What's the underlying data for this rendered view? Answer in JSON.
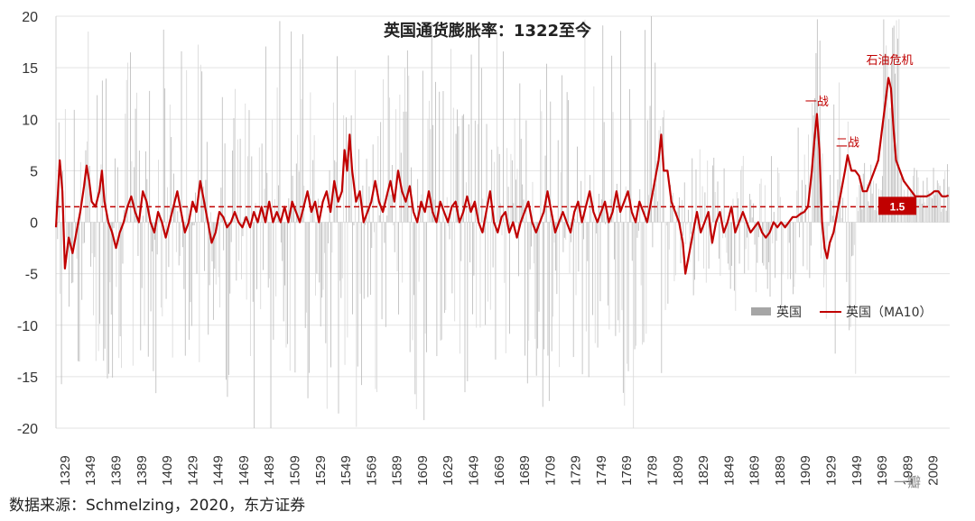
{
  "chart_data": {
    "type": "bar+line",
    "title": "英国通货膨胀率：1322至今",
    "ylim": [
      -20,
      20
    ],
    "yticks": [
      20,
      15,
      10,
      5,
      0,
      -5,
      -10,
      -15,
      -20
    ],
    "xlim": [
      1322,
      2022
    ],
    "xticks": [
      1329,
      1349,
      1369,
      1389,
      1409,
      1429,
      1449,
      1469,
      1489,
      1509,
      1529,
      1549,
      1569,
      1589,
      1609,
      1629,
      1649,
      1669,
      1689,
      1709,
      1729,
      1749,
      1769,
      1789,
      1809,
      1829,
      1849,
      1869,
      1889,
      1909,
      1929,
      1949,
      1969,
      1989,
      2009
    ],
    "grid": "horizontal",
    "legend_position": "bottom-right",
    "series": [
      {
        "name": "英国",
        "kind": "bar",
        "color": "#c0c0c0",
        "values_note": "annual inflation, high volatility pre-1800 (roughly ±15 to ±20), small post-1950"
      },
      {
        "name": "英国（MA10）",
        "kind": "line",
        "color": "#c00000",
        "points": [
          [
            1322,
            -0.5
          ],
          [
            1325,
            6
          ],
          [
            1327,
            3
          ],
          [
            1329,
            -4.5
          ],
          [
            1332,
            -1.5
          ],
          [
            1335,
            -3
          ],
          [
            1338,
            -1
          ],
          [
            1341,
            1
          ],
          [
            1344,
            3.5
          ],
          [
            1346,
            5.5
          ],
          [
            1348,
            4
          ],
          [
            1350,
            2
          ],
          [
            1353,
            1.5
          ],
          [
            1356,
            3
          ],
          [
            1358,
            5
          ],
          [
            1360,
            2
          ],
          [
            1363,
            0
          ],
          [
            1366,
            -1
          ],
          [
            1369,
            -2.5
          ],
          [
            1372,
            -1
          ],
          [
            1375,
            0
          ],
          [
            1378,
            1.5
          ],
          [
            1381,
            2.5
          ],
          [
            1384,
            1
          ],
          [
            1387,
            0
          ],
          [
            1390,
            3
          ],
          [
            1393,
            2
          ],
          [
            1396,
            0
          ],
          [
            1399,
            -1
          ],
          [
            1402,
            1
          ],
          [
            1405,
            0
          ],
          [
            1408,
            -1.5
          ],
          [
            1411,
            0
          ],
          [
            1414,
            1.5
          ],
          [
            1417,
            3
          ],
          [
            1420,
            1
          ],
          [
            1423,
            -1
          ],
          [
            1426,
            0
          ],
          [
            1429,
            2
          ],
          [
            1432,
            1
          ],
          [
            1435,
            4
          ],
          [
            1438,
            2
          ],
          [
            1441,
            0
          ],
          [
            1444,
            -2
          ],
          [
            1447,
            -1
          ],
          [
            1450,
            1
          ],
          [
            1453,
            0.5
          ],
          [
            1456,
            -0.5
          ],
          [
            1459,
            0
          ],
          [
            1462,
            1
          ],
          [
            1465,
            0
          ],
          [
            1468,
            -0.5
          ],
          [
            1471,
            0.5
          ],
          [
            1474,
            -0.5
          ],
          [
            1477,
            1
          ],
          [
            1480,
            0
          ],
          [
            1483,
            1.5
          ],
          [
            1486,
            0
          ],
          [
            1489,
            2
          ],
          [
            1492,
            0
          ],
          [
            1495,
            1
          ],
          [
            1498,
            0
          ],
          [
            1501,
            1.5
          ],
          [
            1504,
            0
          ],
          [
            1507,
            2
          ],
          [
            1510,
            1
          ],
          [
            1513,
            0
          ],
          [
            1516,
            1.5
          ],
          [
            1519,
            3
          ],
          [
            1522,
            1
          ],
          [
            1525,
            2
          ],
          [
            1528,
            0
          ],
          [
            1531,
            2
          ],
          [
            1534,
            3
          ],
          [
            1537,
            1
          ],
          [
            1540,
            4
          ],
          [
            1543,
            2
          ],
          [
            1546,
            3
          ],
          [
            1548,
            7
          ],
          [
            1550,
            5
          ],
          [
            1552,
            8.5
          ],
          [
            1554,
            5
          ],
          [
            1557,
            2
          ],
          [
            1560,
            3
          ],
          [
            1563,
            0
          ],
          [
            1566,
            1
          ],
          [
            1569,
            2
          ],
          [
            1572,
            4
          ],
          [
            1575,
            2
          ],
          [
            1578,
            1
          ],
          [
            1581,
            2.5
          ],
          [
            1584,
            4
          ],
          [
            1587,
            2
          ],
          [
            1590,
            5
          ],
          [
            1593,
            3
          ],
          [
            1596,
            2
          ],
          [
            1599,
            3.5
          ],
          [
            1602,
            1
          ],
          [
            1605,
            0
          ],
          [
            1608,
            2
          ],
          [
            1611,
            1
          ],
          [
            1614,
            3
          ],
          [
            1617,
            1
          ],
          [
            1620,
            0
          ],
          [
            1623,
            2
          ],
          [
            1626,
            1
          ],
          [
            1629,
            0
          ],
          [
            1632,
            1.5
          ],
          [
            1635,
            2
          ],
          [
            1638,
            0
          ],
          [
            1641,
            1
          ],
          [
            1644,
            2.5
          ],
          [
            1647,
            1
          ],
          [
            1650,
            2
          ],
          [
            1653,
            0
          ],
          [
            1656,
            -1
          ],
          [
            1659,
            1
          ],
          [
            1662,
            3
          ],
          [
            1665,
            0
          ],
          [
            1668,
            -1
          ],
          [
            1671,
            0.5
          ],
          [
            1674,
            1
          ],
          [
            1677,
            -1
          ],
          [
            1680,
            0
          ],
          [
            1683,
            -1.5
          ],
          [
            1686,
            0
          ],
          [
            1689,
            1
          ],
          [
            1692,
            2
          ],
          [
            1695,
            0
          ],
          [
            1698,
            -1
          ],
          [
            1701,
            0
          ],
          [
            1704,
            1
          ],
          [
            1707,
            3
          ],
          [
            1710,
            1
          ],
          [
            1713,
            -1
          ],
          [
            1716,
            0
          ],
          [
            1719,
            1
          ],
          [
            1722,
            0
          ],
          [
            1725,
            -1
          ],
          [
            1728,
            1
          ],
          [
            1731,
            2
          ],
          [
            1734,
            0
          ],
          [
            1737,
            1.5
          ],
          [
            1740,
            3
          ],
          [
            1743,
            1
          ],
          [
            1746,
            0
          ],
          [
            1749,
            1
          ],
          [
            1752,
            2
          ],
          [
            1755,
            0
          ],
          [
            1758,
            1
          ],
          [
            1761,
            3
          ],
          [
            1764,
            1
          ],
          [
            1767,
            2
          ],
          [
            1770,
            3
          ],
          [
            1773,
            1
          ],
          [
            1776,
            0
          ],
          [
            1779,
            2
          ],
          [
            1782,
            1
          ],
          [
            1785,
            0
          ],
          [
            1788,
            2
          ],
          [
            1791,
            4
          ],
          [
            1794,
            6
          ],
          [
            1796,
            8.5
          ],
          [
            1798,
            5
          ],
          [
            1801,
            5
          ],
          [
            1804,
            2
          ],
          [
            1807,
            1
          ],
          [
            1810,
            0
          ],
          [
            1813,
            -2
          ],
          [
            1815,
            -5
          ],
          [
            1818,
            -3
          ],
          [
            1821,
            -1
          ],
          [
            1824,
            1
          ],
          [
            1827,
            -1
          ],
          [
            1830,
            0
          ],
          [
            1833,
            1
          ],
          [
            1836,
            -2
          ],
          [
            1839,
            0
          ],
          [
            1842,
            1
          ],
          [
            1845,
            -1
          ],
          [
            1848,
            0
          ],
          [
            1851,
            1.5
          ],
          [
            1854,
            -1
          ],
          [
            1857,
            0
          ],
          [
            1860,
            1
          ],
          [
            1863,
            0
          ],
          [
            1866,
            -1
          ],
          [
            1869,
            -0.5
          ],
          [
            1872,
            0
          ],
          [
            1875,
            -1
          ],
          [
            1878,
            -1.5
          ],
          [
            1881,
            -1
          ],
          [
            1884,
            0
          ],
          [
            1887,
            -0.5
          ],
          [
            1890,
            0
          ],
          [
            1893,
            -0.5
          ],
          [
            1896,
            0
          ],
          [
            1899,
            0.5
          ],
          [
            1902,
            0.5
          ],
          [
            1905,
            0.8
          ],
          [
            1908,
            1
          ],
          [
            1911,
            1.5
          ],
          [
            1914,
            5
          ],
          [
            1916,
            8
          ],
          [
            1918,
            10.5
          ],
          [
            1920,
            7
          ],
          [
            1922,
            0
          ],
          [
            1924,
            -2.5
          ],
          [
            1926,
            -3.5
          ],
          [
            1928,
            -2
          ],
          [
            1931,
            -1
          ],
          [
            1934,
            1
          ],
          [
            1937,
            3
          ],
          [
            1940,
            5
          ],
          [
            1942,
            6.5
          ],
          [
            1945,
            5
          ],
          [
            1948,
            5
          ],
          [
            1951,
            4.5
          ],
          [
            1954,
            3
          ],
          [
            1957,
            3
          ],
          [
            1960,
            4
          ],
          [
            1963,
            5
          ],
          [
            1966,
            6
          ],
          [
            1969,
            9
          ],
          [
            1972,
            12
          ],
          [
            1974,
            14
          ],
          [
            1976,
            13
          ],
          [
            1978,
            9
          ],
          [
            1980,
            6
          ],
          [
            1983,
            5
          ],
          [
            1986,
            4
          ],
          [
            1989,
            3.5
          ],
          [
            1992,
            3
          ],
          [
            1995,
            2.5
          ],
          [
            1998,
            2.5
          ],
          [
            2001,
            2.5
          ],
          [
            2004,
            2.5
          ],
          [
            2007,
            2.7
          ],
          [
            2010,
            3
          ],
          [
            2013,
            3
          ],
          [
            2016,
            2.5
          ],
          [
            2019,
            2.5
          ],
          [
            2021,
            2.6
          ]
        ]
      }
    ],
    "reference_line": {
      "value": 1.5,
      "label": "1.5",
      "color": "#c00000",
      "style": "dashed"
    },
    "annotations": [
      {
        "text": "一战",
        "x": 1918,
        "y": 11
      },
      {
        "text": "二战",
        "x": 1942,
        "y": 7
      },
      {
        "text": "石油危机",
        "x": 1975,
        "y": 15
      }
    ]
  },
  "source": "数据来源：Schmelzing，2020，东方证券",
  "watermark": "一瓣"
}
